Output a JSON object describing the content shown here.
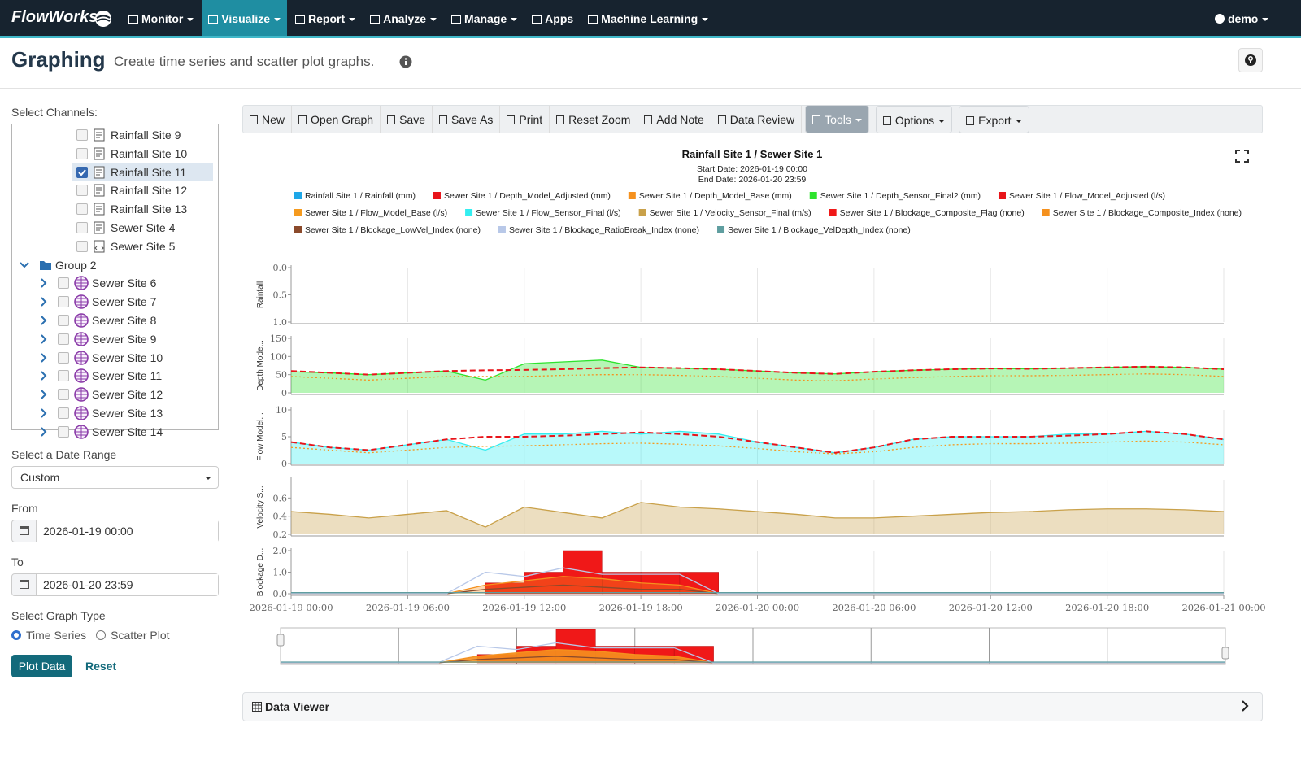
{
  "navbar": {
    "brand": "FlowWorks",
    "items": [
      {
        "label": "Monitor",
        "active": false,
        "caret": true
      },
      {
        "label": "Visualize",
        "active": true,
        "caret": true
      },
      {
        "label": "Report",
        "active": false,
        "caret": true
      },
      {
        "label": "Analyze",
        "active": false,
        "caret": true
      },
      {
        "label": "Manage",
        "active": false,
        "caret": true
      },
      {
        "label": "Apps",
        "active": false,
        "caret": false
      },
      {
        "label": "Machine Learning",
        "active": false,
        "caret": true
      }
    ],
    "user": "demo"
  },
  "header": {
    "title": "Graphing",
    "subtitle": "Create time series and scatter plot graphs."
  },
  "sidebar": {
    "channels_label": "Select Channels:",
    "tree": [
      {
        "label": "Rainfall Site 9",
        "checked": false
      },
      {
        "label": "Rainfall Site 10",
        "checked": false
      },
      {
        "label": "Rainfall Site 11",
        "checked": true
      },
      {
        "label": "Rainfall Site 12",
        "checked": false
      },
      {
        "label": "Rainfall Site 13",
        "checked": false
      },
      {
        "label": "Sewer Site 4",
        "checked": false
      },
      {
        "label": "Sewer Site 5",
        "checked": false
      }
    ],
    "group": {
      "label": "Group 2",
      "items": [
        {
          "label": "Sewer Site 6",
          "checked": false
        },
        {
          "label": "Sewer Site 7",
          "checked": false
        },
        {
          "label": "Sewer Site 8",
          "checked": false
        },
        {
          "label": "Sewer Site 9",
          "checked": false
        },
        {
          "label": "Sewer Site 10",
          "checked": false
        },
        {
          "label": "Sewer Site 11",
          "checked": false
        },
        {
          "label": "Sewer Site 12",
          "checked": false
        },
        {
          "label": "Sewer Site 13",
          "checked": false
        },
        {
          "label": "Sewer Site 14",
          "checked": false
        }
      ]
    },
    "date_range_label": "Select a Date Range",
    "date_range": "Custom",
    "from_label": "From",
    "from": "2026-01-19 00:00",
    "to_label": "To",
    "to": "2026-01-20 23:59",
    "graph_type_label": "Select Graph Type",
    "graph_types": [
      {
        "label": "Time Series",
        "selected": true
      },
      {
        "label": "Scatter Plot",
        "selected": false
      }
    ],
    "plot": "Plot Data",
    "reset": "Reset"
  },
  "toolbar": [
    {
      "label": "New",
      "active": false,
      "caret": false
    },
    {
      "label": "Open Graph",
      "active": false,
      "caret": false
    },
    {
      "label": "Save",
      "active": false,
      "caret": false
    },
    {
      "label": "Save As",
      "active": false,
      "caret": false
    },
    {
      "label": "Print",
      "active": false,
      "caret": false
    },
    {
      "label": "Reset Zoom",
      "active": false,
      "caret": false
    },
    {
      "label": "Add Note",
      "active": false,
      "caret": false
    },
    {
      "label": "Data Review",
      "active": false,
      "caret": false
    },
    {
      "label": "Tools",
      "active": true,
      "caret": true
    },
    {
      "label": "Options",
      "active": false,
      "caret": true
    },
    {
      "label": "Export",
      "active": false,
      "caret": true
    }
  ],
  "chart_data": {
    "type": "line",
    "title": "Rainfall Site 1 / Sewer Site 1",
    "subtitle": [
      "Start Date: 2026-01-19 00:00",
      "End Date: 2026-01-20 23:59"
    ],
    "grid": true,
    "x": [
      "2026-01-19 00:00",
      "2026-01-19 02:00",
      "2026-01-19 04:00",
      "2026-01-19 06:00",
      "2026-01-19 08:00",
      "2026-01-19 10:00",
      "2026-01-19 12:00",
      "2026-01-19 14:00",
      "2026-01-19 16:00",
      "2026-01-19 18:00",
      "2026-01-19 20:00",
      "2026-01-19 22:00",
      "2026-01-20 00:00",
      "2026-01-20 02:00",
      "2026-01-20 04:00",
      "2026-01-20 06:00",
      "2026-01-20 08:00",
      "2026-01-20 10:00",
      "2026-01-20 12:00",
      "2026-01-20 14:00",
      "2026-01-20 16:00",
      "2026-01-20 18:00",
      "2026-01-20 20:00",
      "2026-01-20 22:00",
      "2026-01-21 00:00"
    ],
    "xlim": [
      "2026-01-19 00:00",
      "2026-01-21 00:00"
    ],
    "xticks": [
      "2026-01-19 00:00",
      "2026-01-19 06:00",
      "2026-01-19 12:00",
      "2026-01-19 18:00",
      "2026-01-20 00:00",
      "2026-01-20 06:00",
      "2026-01-20 12:00",
      "2026-01-20 18:00",
      "2026-01-21 00:00"
    ],
    "panels": [
      {
        "label": "Rainfall",
        "ylim": [
          1,
          0
        ],
        "yticks": [
          {
            "value": 0,
            "label": "0.0"
          },
          0.5,
          {
            "value": 1,
            "label": "1.0"
          }
        ]
      },
      {
        "label": "Depth Mode...",
        "ylim": [
          0,
          150
        ],
        "yticks": [
          0,
          50,
          100,
          150
        ]
      },
      {
        "label": "Flow Model...",
        "ylim": [
          0,
          10
        ],
        "yticks": [
          0,
          5,
          10
        ]
      },
      {
        "label": "Velocity S...",
        "ylim": [
          0.2,
          0.8
        ],
        "yticks": [
          0.2,
          0.4,
          0.6
        ]
      },
      {
        "label": "Blockage D...",
        "ylim": [
          0,
          2
        ],
        "yticks": [
          {
            "value": 0,
            "label": "0.0"
          },
          {
            "value": 1,
            "label": "1.0"
          },
          {
            "value": 2,
            "label": "2.0"
          }
        ]
      }
    ],
    "series": [
      {
        "name": "Rainfall Site 1 / Rainfall (mm)",
        "color": "#1ea7e8",
        "panel": 0,
        "style": "line",
        "values": [
          null,
          null,
          null,
          null,
          null,
          null,
          null,
          null,
          null,
          null,
          null,
          null,
          null,
          null,
          null,
          null,
          null,
          null,
          null,
          null,
          null,
          null,
          null,
          null,
          null
        ]
      },
      {
        "name": "Sewer Site 1 / Depth_Model_Adjusted (mm)",
        "color": "#e8141a",
        "panel": 1,
        "style": "dashed",
        "values": [
          60,
          55,
          50,
          55,
          60,
          62,
          63,
          65,
          68,
          70,
          68,
          65,
          60,
          55,
          52,
          58,
          62,
          65,
          67,
          66,
          68,
          70,
          72,
          70,
          65
        ]
      },
      {
        "name": "Sewer Site 1 / Depth_Model_Base (mm)",
        "color": "#f5911e",
        "panel": 1,
        "style": "dotted",
        "values": [
          45,
          40,
          35,
          40,
          45,
          45,
          45,
          48,
          50,
          50,
          48,
          45,
          40,
          35,
          33,
          38,
          42,
          45,
          47,
          47,
          48,
          50,
          52,
          50,
          45
        ]
      },
      {
        "name": "Sewer Site 1 / Depth_Sensor_Final2 (mm)",
        "color": "#2ee32e",
        "panel": 1,
        "style": "area",
        "values": [
          58,
          55,
          50,
          55,
          60,
          35,
          80,
          85,
          90,
          70,
          68,
          65,
          60,
          55,
          52,
          58,
          62,
          65,
          67,
          66,
          68,
          70,
          72,
          70,
          65
        ]
      },
      {
        "name": "Sewer Site 1 / Flow_Model_Adjusted (l/s)",
        "color": "#e8141a",
        "panel": 2,
        "style": "dashed",
        "values": [
          4,
          3,
          2.5,
          3.5,
          4.5,
          5,
          5,
          5.2,
          5.5,
          5.8,
          5.5,
          5,
          4,
          3,
          2,
          3,
          4.5,
          5,
          5,
          5,
          5.2,
          5.5,
          6,
          5.5,
          4.5
        ]
      },
      {
        "name": "Sewer Site 1 / Flow_Model_Base (l/s)",
        "color": "#f59a1e",
        "panel": 2,
        "style": "dotted",
        "values": [
          3,
          2.5,
          2,
          2.5,
          3,
          3.2,
          3.3,
          3.5,
          3.7,
          3.8,
          3.6,
          3.3,
          2.8,
          2.2,
          1.8,
          2.2,
          3,
          3.5,
          3.7,
          3.7,
          3.8,
          4,
          4.2,
          4,
          3.5
        ]
      },
      {
        "name": "Sewer Site 1 / Flow_Sensor_Final (l/s)",
        "color": "#33eef0",
        "panel": 2,
        "style": "area",
        "values": [
          4,
          3,
          2.5,
          3.5,
          4.5,
          2.5,
          5.5,
          5.5,
          6,
          5.5,
          6,
          5.5,
          4,
          3,
          2,
          3,
          4.5,
          5,
          5,
          5,
          5.5,
          5.5,
          6,
          5.5,
          4.5
        ]
      },
      {
        "name": "Sewer Site 1 / Velocity_Sensor_Final (m/s)",
        "color": "#c9a14a",
        "panel": 3,
        "style": "area",
        "values": [
          0.45,
          0.42,
          0.38,
          0.42,
          0.46,
          0.28,
          0.5,
          0.44,
          0.38,
          0.55,
          0.5,
          0.48,
          0.45,
          0.42,
          0.38,
          0.38,
          0.4,
          0.42,
          0.44,
          0.45,
          0.47,
          0.48,
          0.48,
          0.47,
          0.45
        ]
      },
      {
        "name": "Sewer Site 1 / Blockage_Composite_Flag (none)",
        "color": "#f01818",
        "panel": 4,
        "style": "step",
        "values": [
          0,
          0,
          0,
          0,
          0,
          0.5,
          1,
          2,
          1,
          1,
          1,
          0,
          0,
          0,
          0,
          0,
          0,
          0,
          0,
          0,
          0,
          0,
          0,
          0,
          0
        ]
      },
      {
        "name": "Sewer Site 1 / Blockage_Composite_Index (none)",
        "color": "#f5911e",
        "panel": 4,
        "style": "area",
        "values": [
          0,
          0,
          0,
          0,
          0,
          0.4,
          0.6,
          0.8,
          0.7,
          0.5,
          0.4,
          0,
          0,
          0,
          0,
          0,
          0,
          0,
          0,
          0,
          0,
          0,
          0,
          0,
          0
        ]
      },
      {
        "name": "Sewer Site 1 / Blockage_LowVel_Index (none)",
        "color": "#8b4a2b",
        "panel": 4,
        "style": "line",
        "values": [
          0,
          0,
          0,
          0,
          0,
          0.2,
          0.3,
          0.4,
          0.3,
          0.2,
          0.2,
          0,
          0,
          0,
          0,
          0,
          0,
          0,
          0,
          0,
          0,
          0,
          0,
          0,
          0
        ]
      },
      {
        "name": "Sewer Site 1 / Blockage_RatioBreak_Index (none)",
        "color": "#b8c8e8",
        "panel": 4,
        "style": "line",
        "values": [
          0,
          0,
          0,
          0,
          0,
          1,
          0.8,
          1.2,
          0.9,
          0.9,
          0.9,
          0,
          0,
          0,
          0,
          0,
          0,
          0,
          0,
          0,
          0,
          0,
          0,
          0,
          0
        ]
      },
      {
        "name": "Sewer Site 1 / Blockage_VelDepth_Index (none)",
        "color": "#5f9ea0",
        "panel": 4,
        "style": "line",
        "values": [
          0.05,
          0.05,
          0.05,
          0.05,
          0.05,
          0.05,
          0.05,
          0.05,
          0.05,
          0.05,
          0.05,
          0.05,
          0.05,
          0.05,
          0.05,
          0.05,
          0.05,
          0.05,
          0.05,
          0.05,
          0.05,
          0.05,
          0.05,
          0.05,
          0.05
        ]
      }
    ]
  },
  "data_viewer": "Data Viewer"
}
